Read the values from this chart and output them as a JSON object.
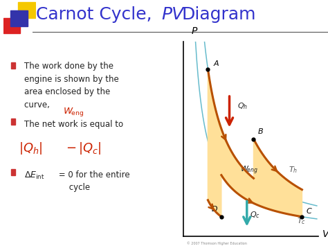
{
  "title_color": "#3333cc",
  "bg_color": "#ffffff",
  "slide_bg": "#ffffff",
  "bullet_sq_color": "#cc3333",
  "text_color": "#222222",
  "red_color": "#cc2200",
  "curve_color": "#b85000",
  "fill_color": "#ffe099",
  "isotherm_color": "#66bbcc",
  "arrow_red": "#cc2200",
  "arrow_teal": "#33aaaa",
  "logo_yellow": "#f5c800",
  "logo_red": "#dd2222",
  "logo_blue": "#3333aa",
  "title_line_color": "#555555",
  "pA": [
    0.18,
    0.86
  ],
  "pB": [
    0.52,
    0.5
  ],
  "pC": [
    0.88,
    0.1
  ],
  "pD": [
    0.28,
    0.1
  ]
}
